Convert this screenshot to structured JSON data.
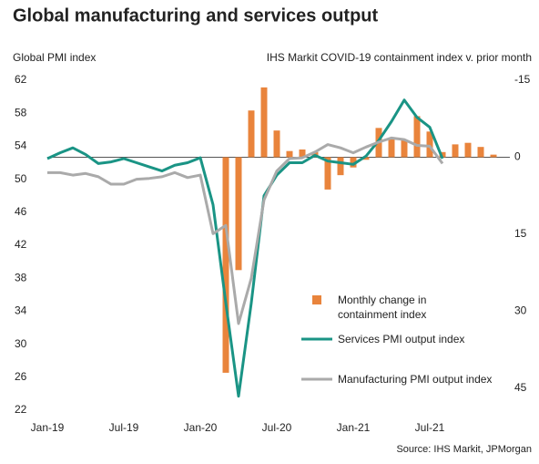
{
  "chart_data": {
    "type": "combo",
    "title": "Global manufacturing and services output",
    "y_axis_label": "Global  PMI index",
    "y2_axis_label": "IHS Markit COVID-19 containment index v. prior month",
    "source": "Source: IHS Markit, JPMorgan",
    "categories": [
      "Jan-19",
      null,
      null,
      null,
      null,
      null,
      "Jul-19",
      null,
      null,
      null,
      null,
      null,
      "Jan-20",
      null,
      null,
      null,
      null,
      null,
      "Jul-20",
      null,
      null,
      null,
      null,
      null,
      "Jan-21",
      null,
      null,
      null,
      null,
      null,
      "Jul-21",
      null,
      null,
      null,
      null,
      null
    ],
    "ylim": [
      22,
      62
    ],
    "yticks": [
      22,
      26,
      30,
      34,
      38,
      42,
      46,
      50,
      54,
      58,
      62
    ],
    "y2lim": [
      -15,
      49.3
    ],
    "y2_inverted": true,
    "y2ticks": [
      -15,
      0,
      15,
      30,
      45
    ],
    "legend": "lower right",
    "series": [
      {
        "name": "Monthly change in containment index",
        "type": "bar",
        "axis": "y2",
        "color": "#e9843c",
        "values": [
          null,
          null,
          null,
          null,
          null,
          null,
          null,
          null,
          null,
          null,
          null,
          null,
          null,
          null,
          42,
          22,
          -9.1,
          -13.6,
          -5.2,
          -1.2,
          -1.5,
          -1,
          6.3,
          3.5,
          2,
          0.5,
          -5.7,
          -3.8,
          -3.4,
          -8,
          -5,
          -1,
          -2.5,
          -2.8,
          -2,
          -0.5
        ]
      },
      {
        "name": "Services PMI output index",
        "type": "line",
        "axis": "y",
        "color": "#1a9485",
        "values": [
          52.5,
          53.2,
          53.8,
          53.0,
          51.9,
          52.1,
          52.5,
          52.0,
          51.5,
          51.0,
          51.7,
          52.0,
          52.6,
          46.9,
          35,
          23.7,
          35,
          48,
          50.5,
          52,
          52,
          52.9,
          52.2,
          52,
          51.8,
          52.8,
          54.7,
          57,
          59.6,
          57.5,
          56.3,
          52.5,
          null,
          null,
          null,
          null
        ]
      },
      {
        "name": "Manufacturing PMI output index",
        "type": "line",
        "axis": "y",
        "color": "#aaaaaa",
        "values": [
          50.8,
          50.8,
          50.5,
          50.7,
          50.3,
          49.4,
          49.4,
          50.0,
          50.1,
          50.3,
          50.8,
          50.2,
          50.5,
          43.4,
          44.4,
          32.5,
          38,
          47.5,
          51,
          52.5,
          52.6,
          53.3,
          54.2,
          53.8,
          53.2,
          53.9,
          54.5,
          55.0,
          54.8,
          54.1,
          54.0,
          51.9,
          null,
          null,
          null,
          null
        ]
      }
    ]
  }
}
